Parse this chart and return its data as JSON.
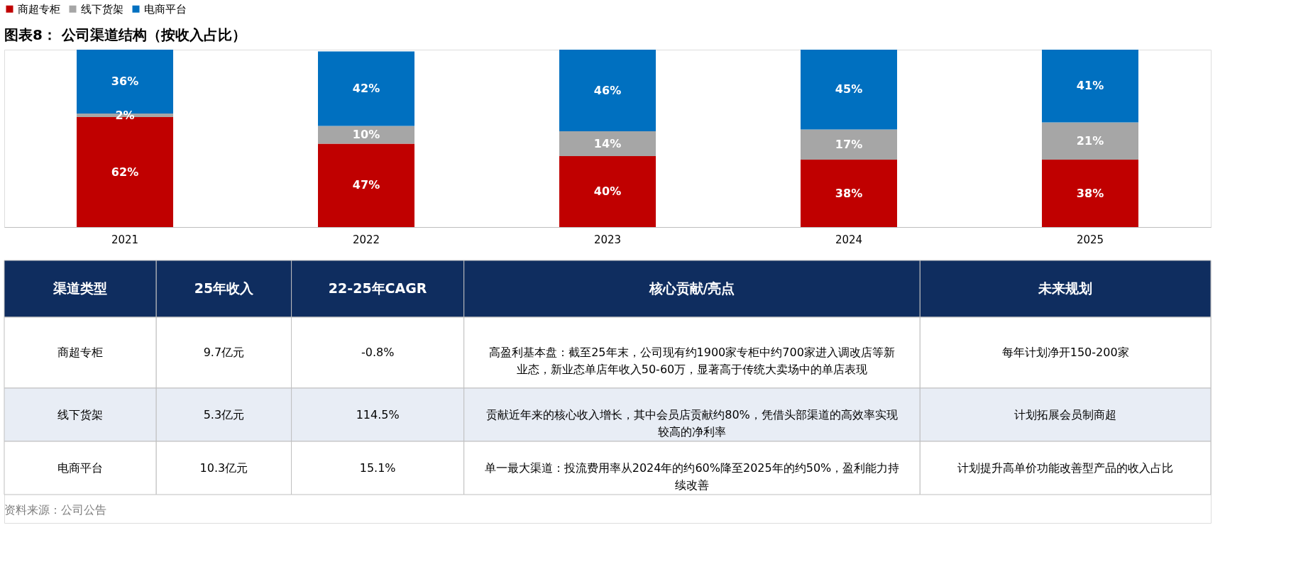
{
  "chart_data": [
    {
      "type": "bar",
      "title": "图表8： 公司渠道结构（按收入占比）",
      "stacked": true,
      "legend": "top",
      "grid": false,
      "categories": [
        "2021",
        "2022",
        "2023",
        "2024",
        "2025"
      ],
      "series": [
        {
          "name": "商超专柜",
          "color": "#c00000",
          "values": [
            62,
            47,
            40,
            38,
            38
          ],
          "value_labels": [
            "62%",
            "47%",
            "40%",
            "38%",
            "38%"
          ]
        },
        {
          "name": "线下货架",
          "color": "#a6a6a6",
          "values": [
            2,
            10,
            14,
            17,
            21
          ],
          "value_labels": [
            "2%",
            "10%",
            "14%",
            "17%",
            "21%"
          ]
        },
        {
          "name": "电商平台",
          "color": "#0070c0",
          "values": [
            36,
            42,
            46,
            45,
            41
          ],
          "value_labels": [
            "36%",
            "42%",
            "46%",
            "45%",
            "41%"
          ]
        }
      ]
    },
    {
      "type": "other",
      "categories": [
        "渠道类型",
        "25年收入",
        "22-25年CAGR",
        "核心贡献/亮点",
        "未来规划"
      ],
      "y_categories": [
        "商超专柜",
        "线下货架",
        "电商平台"
      ],
      "cell_labels": [
        [
          "9.7亿元",
          "-0.8%",
          "高盈利基本盘：截至25年末，公司现有约1900家专柜中约700家进入调改店等新业态，新业态单店年收入50-60万，显著高于传统大卖场中的单店表现",
          "每年计划净开150-200家"
        ],
        [
          "5.3亿元",
          "114.5%",
          "贡献近年来的核心收入增长，其中会员店贡献约80%，凭借头部渠道的高效率实现较高的净利率",
          "计划拓展会员制商超"
        ],
        [
          "10.3亿元",
          "15.1%",
          "单一最大渠道：投流费用率从2024年的约60%降至2025年的约50%，盈利能力持续改善",
          "计划提升高单价功能改善型产品的收入占比"
        ]
      ],
      "annotations": [
        "资料来源：公司公告"
      ]
    }
  ]
}
